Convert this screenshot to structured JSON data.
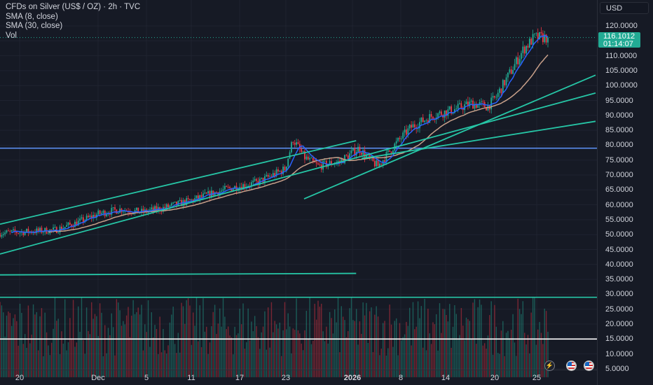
{
  "header": {
    "symbol": "CFDs on Silver (US$ / OZ) · 2h · TVC",
    "indicator_sma_fast": "SMA (8, close)",
    "indicator_sma_slow": "SMA (30, close)",
    "indicator_vol": "Vol",
    "currency_button": "USD"
  },
  "price_label": {
    "price": "116.1012",
    "countdown": "01:14:07",
    "color": "#22ab94"
  },
  "colors": {
    "background": "#161a25",
    "up": "#22ab94",
    "down": "#f23645",
    "sma_fast": "#2962ff",
    "sma_slow": "#c8a08a",
    "trendline": "#26c6a6",
    "horizontal_blue": "#5b8def",
    "horizontal_white": "#ffffff"
  },
  "icons": [
    "bolt-icon",
    "us-flag-icon",
    "us-flag-icon"
  ],
  "chart_data": {
    "type": "candlestick",
    "title": "CFDs on Silver (US$ / OZ) · 2h · TVC",
    "yaxis": {
      "ticks": [
        "120.0000",
        "115.0000",
        "110.0000",
        "105.0000",
        "100.0000",
        "95.0000",
        "90.0000",
        "85.0000",
        "80.0000",
        "75.0000",
        "70.0000",
        "65.0000",
        "60.0000",
        "55.0000",
        "50.0000",
        "45.0000",
        "40.0000",
        "35.0000",
        "30.0000",
        "25.0000",
        "20.0000",
        "15.0000",
        "10.0000",
        "5.0000"
      ],
      "range": [
        2.5,
        122.5
      ]
    },
    "xaxis": {
      "ticks": [
        {
          "label": "20",
          "bold": false
        },
        {
          "label": "Dec",
          "bold": false
        },
        {
          "label": "5",
          "bold": false
        },
        {
          "label": "11",
          "bold": false
        },
        {
          "label": "17",
          "bold": false
        },
        {
          "label": "23",
          "bold": false
        },
        {
          "label": "2026",
          "bold": true
        },
        {
          "label": "8",
          "bold": false
        },
        {
          "label": "14",
          "bold": false
        },
        {
          "label": "20",
          "bold": false
        },
        {
          "label": "25",
          "bold": false
        }
      ]
    },
    "price_path": [
      [
        0,
        50.5
      ],
      [
        0.05,
        51
      ],
      [
        0.1,
        51.5
      ],
      [
        0.14,
        54
      ],
      [
        0.18,
        57
      ],
      [
        0.22,
        58.5
      ],
      [
        0.26,
        57.5
      ],
      [
        0.3,
        59
      ],
      [
        0.35,
        61.5
      ],
      [
        0.39,
        64
      ],
      [
        0.43,
        66
      ],
      [
        0.47,
        67.5
      ],
      [
        0.52,
        72
      ],
      [
        0.535,
        82
      ],
      [
        0.555,
        76
      ],
      [
        0.58,
        73
      ],
      [
        0.62,
        74.5
      ],
      [
        0.655,
        79
      ],
      [
        0.675,
        75
      ],
      [
        0.69,
        73
      ],
      [
        0.72,
        80
      ],
      [
        0.75,
        86
      ],
      [
        0.79,
        90
      ],
      [
        0.83,
        92
      ],
      [
        0.86,
        94
      ],
      [
        0.89,
        93
      ],
      [
        0.905,
        96
      ],
      [
        0.93,
        104
      ],
      [
        0.955,
        112
      ],
      [
        0.975,
        116.1
      ]
    ],
    "last_price": 116.1012,
    "series": [
      {
        "name": "SMA (8, close)"
      },
      {
        "name": "SMA (30, close)"
      },
      {
        "name": "Vol"
      }
    ],
    "horizontal_lines": [
      79,
      29,
      15
    ],
    "trendlines": [
      {
        "from": [
          0.0,
          53.5
        ],
        "to": [
          0.65,
          81.5
        ]
      },
      {
        "from": [
          0.0,
          43.5
        ],
        "to": [
          0.995,
          97.5
        ]
      },
      {
        "from": [
          0.0,
          36.5
        ],
        "to": [
          0.65,
          37
        ]
      },
      {
        "from": [
          0.555,
          62
        ],
        "to": [
          0.995,
          103.5
        ]
      },
      {
        "from": [
          0.66,
          75.5
        ],
        "to": [
          0.995,
          88
        ]
      }
    ]
  }
}
